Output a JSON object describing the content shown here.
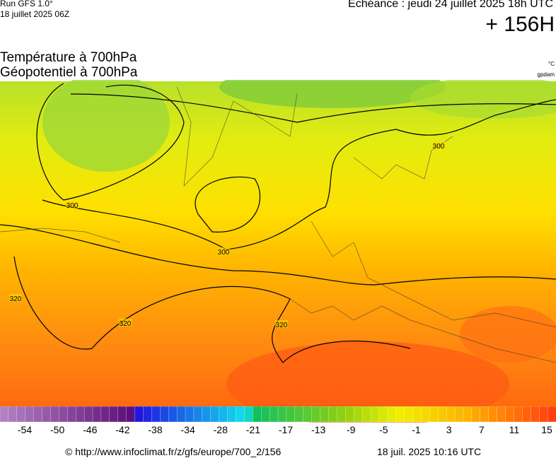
{
  "header": {
    "run": "Run GFS 1.0°",
    "run_date": "18 juillet 2025 06Z",
    "valid": "Echéance : jeudi 24 juillet 2025 18h UTC",
    "lead": "+ 156H"
  },
  "titles": {
    "field1": "Température à 700hPa",
    "field2": "Géopotentiel à 700hPa",
    "unit1": "°C",
    "unit2": "gpdam"
  },
  "contour_labels": [
    "300",
    "300",
    "300",
    "320",
    "320",
    "320"
  ],
  "colorbar": {
    "ticks": [
      -54,
      -50,
      -46,
      -42,
      -38,
      -34,
      -28,
      -21,
      -17,
      -13,
      -9,
      -5,
      -1,
      3,
      7,
      11,
      15
    ]
  },
  "footer": {
    "source": "© http://www.infoclimat.fr/z/gfs/europe/700_2/156",
    "generated": "18 juil. 2025 10:16 UTC"
  }
}
